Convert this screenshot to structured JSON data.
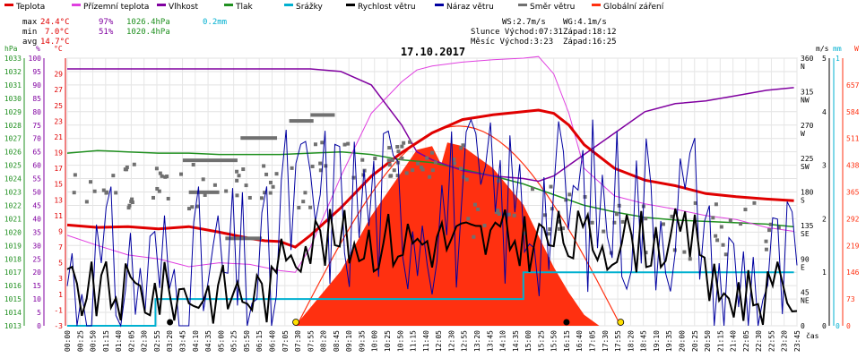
{
  "title": "17.10.2017",
  "legend": [
    {
      "label": "Teplota",
      "color": "#e00000"
    },
    {
      "label": "Přízemní teplota",
      "color": "#e040e0"
    },
    {
      "label": "Vlhkost",
      "color": "#8000a0"
    },
    {
      "label": "Tlak",
      "color": "#209020"
    },
    {
      "label": "Srážky",
      "color": "#00b0d0"
    },
    {
      "label": "Rychlost větru",
      "color": "#000000"
    },
    {
      "label": "Náraz větru",
      "color": "#0000a0"
    },
    {
      "label": "Směr větru",
      "color": "#707070"
    },
    {
      "label": "Globální záření",
      "color": "#ff3010"
    }
  ],
  "stats": {
    "max_label": "max",
    "min_label": "min",
    "avg_label": "avg",
    "max_temp": "24.4°C",
    "max_hum": "97%",
    "max_press": "1026.4hPa",
    "max_rain": "0.2mm",
    "min_temp": "7.0°C",
    "min_hum": "51%",
    "min_press": "1020.4hPa",
    "avg_temp": "14.7°C"
  },
  "sun": {
    "ws": "WS:2.7m/s",
    "wg": "WG:4.1m/s",
    "sunrise": "Slunce Východ:07:31",
    "sunset": "Západ:18:12",
    "moonrise": "Měsíc  Východ:3:23",
    "moonset": "Západ:16:25"
  },
  "axis_units": {
    "hpa": "hPa",
    "pct": "%",
    "degc": "°C",
    "ms": "m/s",
    "mm": "mm",
    "w": "W",
    "time": "čas"
  },
  "chart_data": {
    "type": "line",
    "title": "17.10.2017",
    "x_labels": [
      "00:00",
      "00:25",
      "00:50",
      "01:15",
      "01:40",
      "02:05",
      "02:30",
      "02:55",
      "03:20",
      "03:45",
      "04:10",
      "04:35",
      "05:00",
      "05:25",
      "05:50",
      "06:15",
      "06:40",
      "07:05",
      "07:30",
      "07:55",
      "08:20",
      "08:45",
      "09:10",
      "09:35",
      "10:00",
      "10:25",
      "10:50",
      "11:15",
      "11:40",
      "12:05",
      "12:30",
      "12:55",
      "13:20",
      "13:45",
      "14:10",
      "14:35",
      "15:00",
      "15:25",
      "15:50",
      "16:15",
      "16:40",
      "17:05",
      "17:30",
      "17:55",
      "18:20",
      "18:45",
      "19:10",
      "19:35",
      "20:00",
      "20:25",
      "20:50",
      "21:15",
      "21:40",
      "22:05",
      "22:30",
      "22:55",
      "23:20",
      "23:45"
    ],
    "axes": {
      "pressure_hpa": {
        "min": 1013,
        "max": 1033,
        "ticks": [
          1013,
          1014,
          1015,
          1016,
          1017,
          1018,
          1019,
          1020,
          1021,
          1022,
          1023,
          1024,
          1025,
          1026,
          1027,
          1028,
          1029,
          1030,
          1031,
          1032,
          1033
        ]
      },
      "humidity_pct": {
        "min": 0,
        "max": 100,
        "ticks": [
          0,
          5,
          10,
          15,
          20,
          25,
          30,
          35,
          40,
          45,
          50,
          55,
          60,
          65,
          70,
          75,
          80,
          85,
          90,
          95,
          100
        ]
      },
      "temperature_c": {
        "min": -3,
        "max": 31,
        "ticks": [
          -3,
          -1,
          1,
          3,
          5,
          7,
          9,
          11,
          13,
          15,
          17,
          19,
          21,
          23,
          25,
          27,
          29
        ]
      },
      "wind_dir": {
        "ticks": [
          "0",
          "45 NE",
          "90 E",
          "135 SE",
          "180 S",
          "225 SW",
          "270 W",
          "315 NW",
          "360 N"
        ]
      },
      "wind_ms": {
        "min": 0,
        "max": 5,
        "ticks": [
          0,
          1,
          2,
          3,
          4,
          5
        ]
      },
      "rain_mm": {
        "min": 0,
        "max": 1,
        "ticks": [
          0,
          1
        ]
      },
      "radiation_w": {
        "min": 0,
        "max": 730,
        "ticks": [
          0,
          73,
          146,
          219,
          292,
          365,
          438,
          511,
          584,
          657
        ]
      }
    },
    "series": [
      {
        "name": "Teplota",
        "unit": "°C",
        "x": [
          0,
          1,
          2,
          3,
          4,
          5,
          6,
          6.5,
          7,
          7.5,
          8,
          9,
          10,
          11,
          12,
          13,
          14,
          15,
          15.5,
          16,
          16.5,
          17,
          18,
          19,
          20,
          21,
          22,
          23,
          23.9
        ],
        "values": [
          9.8,
          9.5,
          9.6,
          9.3,
          9.6,
          8.9,
          8.1,
          7.8,
          7.7,
          7.0,
          8.5,
          12,
          16,
          19,
          21.5,
          23.2,
          23.8,
          24.2,
          24.4,
          24.0,
          22.5,
          20.0,
          17.0,
          15.5,
          14.8,
          13.8,
          13.4,
          13.1,
          12.9
        ]
      },
      {
        "name": "Přízemní teplota",
        "unit": "°C",
        "x": [
          0,
          1,
          2,
          3,
          4,
          5,
          6,
          7,
          7.5,
          8,
          9,
          10,
          11,
          11.5,
          12,
          13,
          14,
          15,
          15.5,
          16,
          16.5,
          17,
          18,
          19,
          20,
          21,
          22,
          23,
          23.9
        ],
        "values": [
          8.5,
          7.2,
          6.0,
          5.5,
          4.5,
          5.0,
          4.8,
          4.0,
          3.8,
          7.0,
          16,
          24,
          28,
          29.5,
          30,
          30.5,
          30.8,
          31.0,
          31.2,
          29,
          24,
          17,
          13.5,
          12.5,
          11.8,
          11.0,
          10.5,
          9.5,
          9.0
        ]
      },
      {
        "name": "Vlhkost",
        "unit": "%",
        "x": [
          0,
          1,
          2,
          3,
          4,
          5,
          6,
          7,
          8,
          9,
          10,
          11,
          11.5,
          12,
          13,
          14,
          15,
          15.5,
          16,
          16.5,
          17,
          18,
          19,
          20,
          21,
          22,
          23,
          23.9
        ],
        "values": [
          96,
          96,
          96,
          96,
          96,
          96,
          96,
          96,
          96,
          95,
          90,
          75,
          65,
          62,
          58,
          56,
          55,
          54,
          56,
          60,
          64,
          72,
          80,
          83,
          84,
          86,
          88,
          89
        ]
      },
      {
        "name": "Tlak",
        "unit": "hPa",
        "x": [
          0,
          1,
          2,
          3,
          4,
          5,
          6,
          7,
          8,
          9,
          10,
          11,
          12,
          13,
          14,
          15,
          16,
          17,
          18,
          19,
          20,
          21,
          22,
          23,
          23.9
        ],
        "values": [
          1025.9,
          1026.1,
          1026.0,
          1025.9,
          1025.9,
          1025.8,
          1025.8,
          1025.8,
          1025.9,
          1026.0,
          1025.8,
          1025.4,
          1025.2,
          1024.7,
          1024.2,
          1023.6,
          1022.8,
          1022.0,
          1021.5,
          1021.1,
          1020.9,
          1020.8,
          1020.7,
          1020.6,
          1020.4
        ]
      },
      {
        "name": "Srážky",
        "unit": "mm",
        "x": [
          0,
          2.9,
          2.9,
          15.0,
          15.0,
          23.9
        ],
        "values": [
          0,
          0,
          0.1,
          0.1,
          0.2,
          0.2
        ]
      },
      {
        "name": "Globální záření",
        "unit": "W",
        "x": [
          7.5,
          9,
          10,
          11,
          11.5,
          12,
          12.3,
          12.5,
          13,
          14,
          15,
          16,
          16.5,
          17,
          17.5
        ],
        "values": [
          0,
          150,
          300,
          420,
          480,
          490,
          440,
          500,
          490,
          430,
          330,
          160,
          90,
          30,
          0
        ]
      }
    ]
  }
}
